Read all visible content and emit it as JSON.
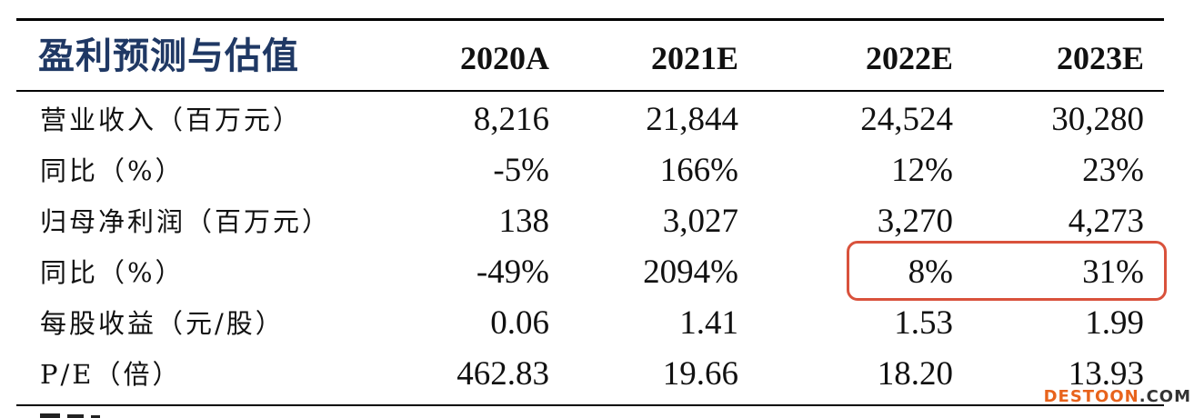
{
  "table": {
    "title": "盈利预测与估值",
    "columns": [
      "2020A",
      "2021E",
      "2022E",
      "2023E"
    ],
    "rows": [
      {
        "label": "营业收入（百万元）",
        "values": [
          "8,216",
          "21,844",
          "24,524",
          "30,280"
        ]
      },
      {
        "label": "同比（%）",
        "values": [
          "-5%",
          "166%",
          "12%",
          "23%"
        ]
      },
      {
        "label": "归母净利润（百万元）",
        "values": [
          "138",
          "3,027",
          "3,270",
          "4,273"
        ]
      },
      {
        "label": "同比（%）",
        "values": [
          "-49%",
          "2094%",
          "8%",
          "31%"
        ]
      },
      {
        "label": "每股收益（元/股）",
        "values": [
          "0.06",
          "1.41",
          "1.53",
          "1.99"
        ]
      },
      {
        "label": "P/E（倍）",
        "values": [
          "462.83",
          "19.66",
          "18.20",
          "13.93"
        ]
      }
    ]
  },
  "highlight": {
    "color": "#d9523c",
    "description_row": 3,
    "columns": [
      "2022E",
      "2023E"
    ]
  },
  "colors": {
    "title": "#1f3864",
    "text": "#111111",
    "rule": "#000000",
    "watermark_orange": "#e8631c",
    "watermark_dark": "#333333"
  },
  "watermark": {
    "brand": "DESTOON",
    "suffix": ".COM"
  }
}
